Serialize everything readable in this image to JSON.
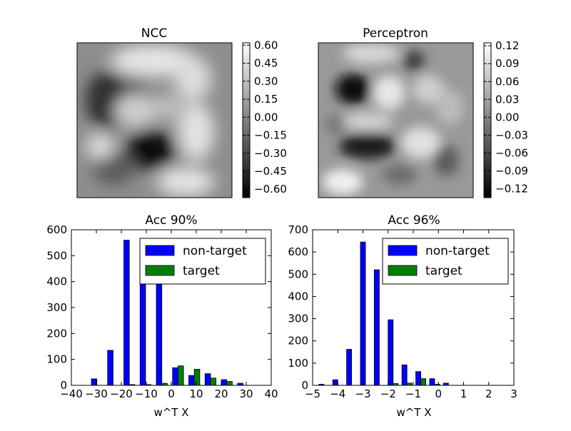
{
  "chart_data": [
    {
      "type": "heatmap",
      "title": "NCC",
      "colormap": "gray",
      "colorbar_ticks": [
        "0.60",
        "0.45",
        "0.30",
        "0.15",
        "0.00",
        "−0.15",
        "−0.30",
        "−0.45",
        "−0.60"
      ],
      "colorbar_range": [
        -0.67,
        0.62
      ]
    },
    {
      "type": "heatmap",
      "title": "Perceptron",
      "colormap": "gray",
      "colorbar_ticks": [
        "0.12",
        "0.09",
        "0.06",
        "0.03",
        "0.00",
        "−0.03",
        "−0.06",
        "−0.09",
        "−0.12"
      ],
      "colorbar_range": [
        -0.135,
        0.125
      ]
    },
    {
      "type": "bar",
      "title": "Acc 90%",
      "xlabel": "w^T X",
      "xlim": [
        -40,
        40
      ],
      "ylim": [
        0,
        600
      ],
      "xticks": [
        "−40",
        "−30",
        "−20",
        "−10",
        "0",
        "10",
        "20",
        "30",
        "40"
      ],
      "yticks": [
        "0",
        "100",
        "200",
        "300",
        "400",
        "500",
        "600"
      ],
      "legend": "top-right",
      "series": [
        {
          "name": "non-target",
          "color": "#0000ff",
          "x": [
            -32,
            -25.5,
            -19,
            -12.5,
            -6,
            0.5,
            7,
            13.5,
            20,
            26.5
          ],
          "values": [
            25,
            135,
            560,
            500,
            390,
            68,
            38,
            45,
            22,
            8
          ]
        },
        {
          "name": "target",
          "color": "#008000",
          "x": [
            -32,
            -25.5,
            -19,
            -12.5,
            -6,
            0.5,
            7,
            13.5,
            20,
            26.5
          ],
          "values": [
            0,
            0,
            3,
            3,
            8,
            75,
            62,
            28,
            15,
            0
          ]
        }
      ]
    },
    {
      "type": "bar",
      "title": "Acc 96%",
      "xlabel": "w^T X",
      "xlim": [
        -5,
        3
      ],
      "ylim": [
        0,
        700
      ],
      "xticks": [
        "−5",
        "−4",
        "−3",
        "−2",
        "−1",
        "0",
        "1",
        "2",
        "3"
      ],
      "yticks": [
        "0",
        "100",
        "200",
        "300",
        "400",
        "500",
        "600",
        "700"
      ],
      "legend": "top-right",
      "series": [
        {
          "name": "non-target",
          "color": "#0000ff",
          "x": [
            -4.75,
            -4.2,
            -3.65,
            -3.1,
            -2.55,
            -2.0,
            -1.45,
            -0.9,
            -0.35,
            0.2,
            0.75,
            1.3
          ],
          "values": [
            5,
            25,
            162,
            645,
            520,
            295,
            92,
            62,
            30,
            10,
            0,
            0
          ]
        },
        {
          "name": "target",
          "color": "#008000",
          "x": [
            -4.75,
            -4.2,
            -3.65,
            -3.1,
            -2.55,
            -2.0,
            -1.45,
            -0.9,
            -0.35,
            0.2,
            0.75,
            1.3
          ],
          "values": [
            0,
            0,
            0,
            0,
            0,
            8,
            10,
            30,
            5,
            0,
            0,
            0
          ]
        }
      ]
    }
  ]
}
